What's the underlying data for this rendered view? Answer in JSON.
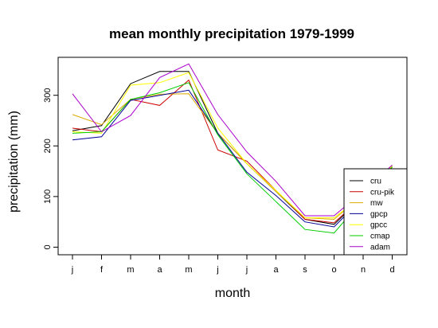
{
  "chart_data": {
    "type": "line",
    "title": "mean monthly precipitation 1979-1999",
    "xlabel": "month",
    "ylabel": "precipitation (mm)",
    "categories": [
      "j",
      "f",
      "m",
      "a",
      "m",
      "j",
      "j",
      "a",
      "s",
      "o",
      "n",
      "d"
    ],
    "y_ticks": [
      0,
      100,
      200,
      300
    ],
    "ylim": [
      -15,
      375
    ],
    "grid": false,
    "legend_position": "bottom-right",
    "series": [
      {
        "name": "cru",
        "color": "#000000",
        "values": [
          230,
          240,
          323,
          347,
          347,
          225,
          165,
          110,
          55,
          45,
          100,
          160
        ]
      },
      {
        "name": "cru-pik",
        "color": "#cc0000",
        "values": [
          235,
          228,
          292,
          280,
          330,
          192,
          170,
          112,
          55,
          48,
          100,
          158
        ]
      },
      {
        "name": "mw",
        "color": "#ddaa00",
        "values": [
          262,
          242,
          292,
          302,
          303,
          225,
          165,
          110,
          58,
          55,
          103,
          160
        ]
      },
      {
        "name": "gpcp",
        "color": "#000099",
        "values": [
          212,
          218,
          290,
          300,
          310,
          225,
          148,
          102,
          50,
          40,
          98,
          160
        ]
      },
      {
        "name": "gpcc",
        "color": "#ffff00",
        "values": [
          228,
          225,
          320,
          325,
          345,
          235,
          165,
          112,
          58,
          58,
          103,
          160
        ]
      },
      {
        "name": "cmap",
        "color": "#00cc00",
        "values": [
          225,
          228,
          292,
          305,
          325,
          222,
          145,
          90,
          35,
          28,
          95,
          158
        ]
      },
      {
        "name": "adam",
        "color": "#aa00cc",
        "values": [
          303,
          228,
          260,
          335,
          362,
          262,
          188,
          130,
          62,
          62,
          110,
          162
        ]
      }
    ]
  }
}
